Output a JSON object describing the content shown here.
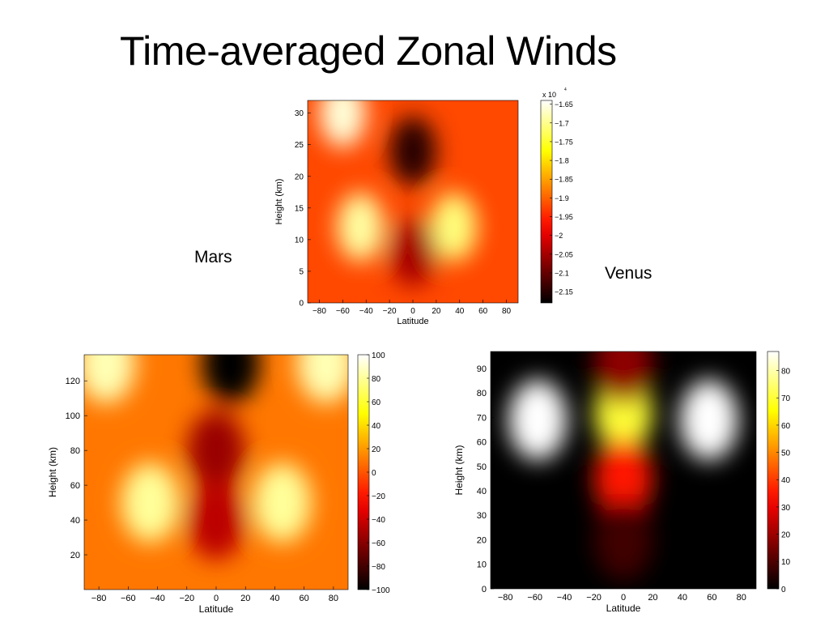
{
  "slide": {
    "title": "Time-averaged Zonal Winds",
    "labels": [
      "Mars",
      "Venus"
    ]
  },
  "colormap": "hot",
  "chart_data": [
    {
      "type": "heatmap",
      "title": "",
      "xlabel": "Latitude",
      "ylabel": "Height (km)",
      "xlim": [
        -90,
        90
      ],
      "ylim": [
        0,
        32
      ],
      "xticks": [
        -80,
        -60,
        -40,
        -20,
        0,
        20,
        40,
        60,
        80
      ],
      "yticks": [
        0,
        5,
        10,
        15,
        20,
        25,
        30
      ],
      "colorbar": {
        "min": -2.18,
        "max": -1.64,
        "exponent_label": "x 10",
        "exponent": "4",
        "ticks": [
          -1.65,
          -1.7,
          -1.75,
          -1.8,
          -1.85,
          -1.9,
          -1.95,
          -2,
          -2.05,
          -2.1,
          -2.15
        ]
      },
      "background_value": -1.92,
      "features": [
        {
          "lat": -60,
          "height": 30,
          "value": -1.66
        },
        {
          "lat": -45,
          "height": 12,
          "value": -1.69
        },
        {
          "lat": 35,
          "height": 12,
          "value": -1.71
        },
        {
          "lat": 0,
          "height": 24,
          "value": -2.15
        },
        {
          "lat": 0,
          "height": 8,
          "value": -2.05
        }
      ]
    },
    {
      "type": "heatmap",
      "title": "",
      "xlabel": "Latitude",
      "ylabel": "Height (km)",
      "xlim": [
        -90,
        90
      ],
      "ylim": [
        0,
        135
      ],
      "xticks": [
        -80,
        -60,
        -40,
        -20,
        0,
        20,
        40,
        60,
        80
      ],
      "yticks": [
        20,
        40,
        60,
        80,
        100,
        120
      ],
      "colorbar": {
        "min": -100,
        "max": 100,
        "ticks": [
          100,
          80,
          60,
          40,
          20,
          0,
          -20,
          -40,
          -60,
          -80,
          -100
        ]
      },
      "background_value": 10,
      "features": [
        {
          "lat": -75,
          "height": 130,
          "value": 85
        },
        {
          "lat": -45,
          "height": 50,
          "value": 80
        },
        {
          "lat": 75,
          "height": 130,
          "value": 85
        },
        {
          "lat": 45,
          "height": 50,
          "value": 80
        },
        {
          "lat": 10,
          "height": 130,
          "value": -100
        },
        {
          "lat": 0,
          "height": 80,
          "value": -55
        },
        {
          "lat": 0,
          "height": 40,
          "value": -45
        }
      ]
    },
    {
      "type": "heatmap",
      "title": "",
      "xlabel": "Latitude",
      "ylabel": "Height (km)",
      "xlim": [
        -90,
        90
      ],
      "ylim": [
        0,
        97
      ],
      "xticks": [
        -80,
        -60,
        -40,
        -20,
        0,
        20,
        40,
        60,
        80
      ],
      "yticks": [
        0,
        10,
        20,
        30,
        40,
        50,
        60,
        70,
        80,
        90
      ],
      "colorbar": {
        "min": 0,
        "max": 87,
        "ticks": [
          80,
          70,
          60,
          50,
          40,
          30,
          20,
          10,
          0
        ]
      },
      "background_value": 0,
      "features": [
        {
          "lat": 0,
          "height": 72,
          "value": 70
        },
        {
          "lat": -58,
          "height": 69,
          "value": 87
        },
        {
          "lat": 58,
          "height": 69,
          "value": 87
        },
        {
          "lat": 0,
          "height": 45,
          "value": 35
        },
        {
          "lat": 0,
          "height": 20,
          "value": 8
        },
        {
          "lat": 0,
          "height": 92,
          "value": 18
        }
      ]
    }
  ]
}
